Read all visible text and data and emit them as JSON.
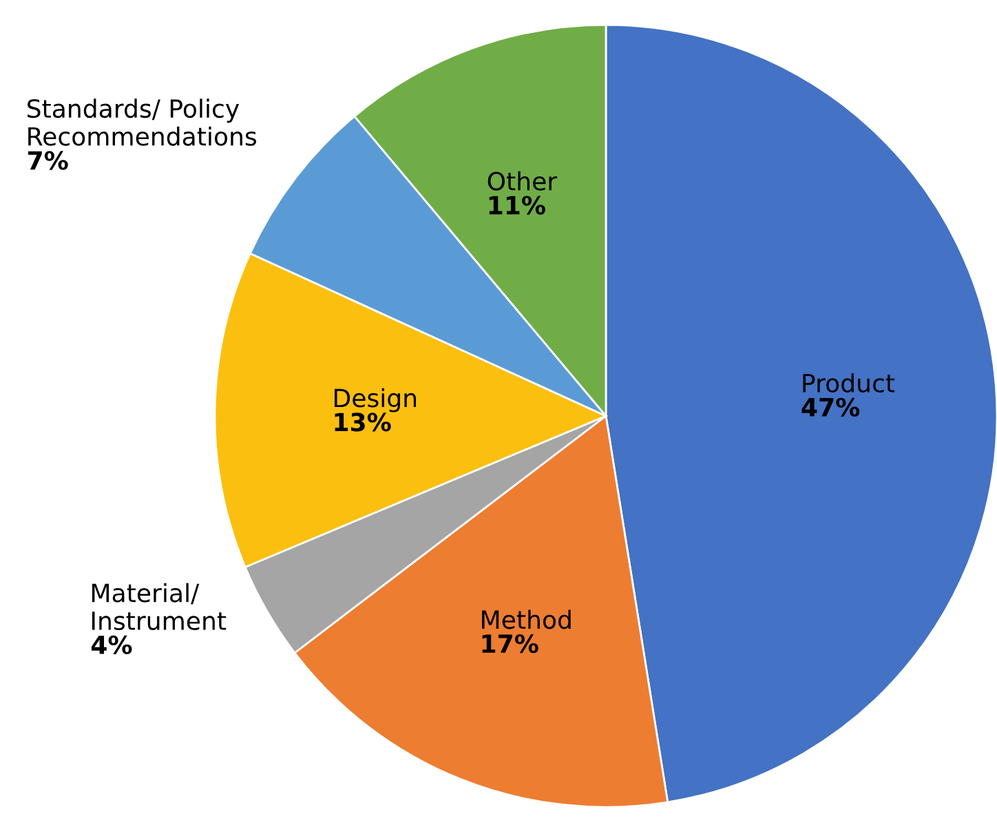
{
  "chart_data": {
    "type": "pie",
    "categories": [
      "Product",
      "Method",
      "Material/\nInstrument",
      "Design",
      "Standards/ Policy\nRecommendations",
      "Other"
    ],
    "values": [
      47,
      17,
      4,
      13,
      7,
      11
    ],
    "value_labels": [
      "47%",
      "17%",
      "4%",
      "13%",
      "7%",
      "11%"
    ],
    "colors": [
      "#4472c4",
      "#ed7d31",
      "#a5a5a5",
      "#fbbf0f",
      "#5b9bd5",
      "#70ad47"
    ]
  }
}
